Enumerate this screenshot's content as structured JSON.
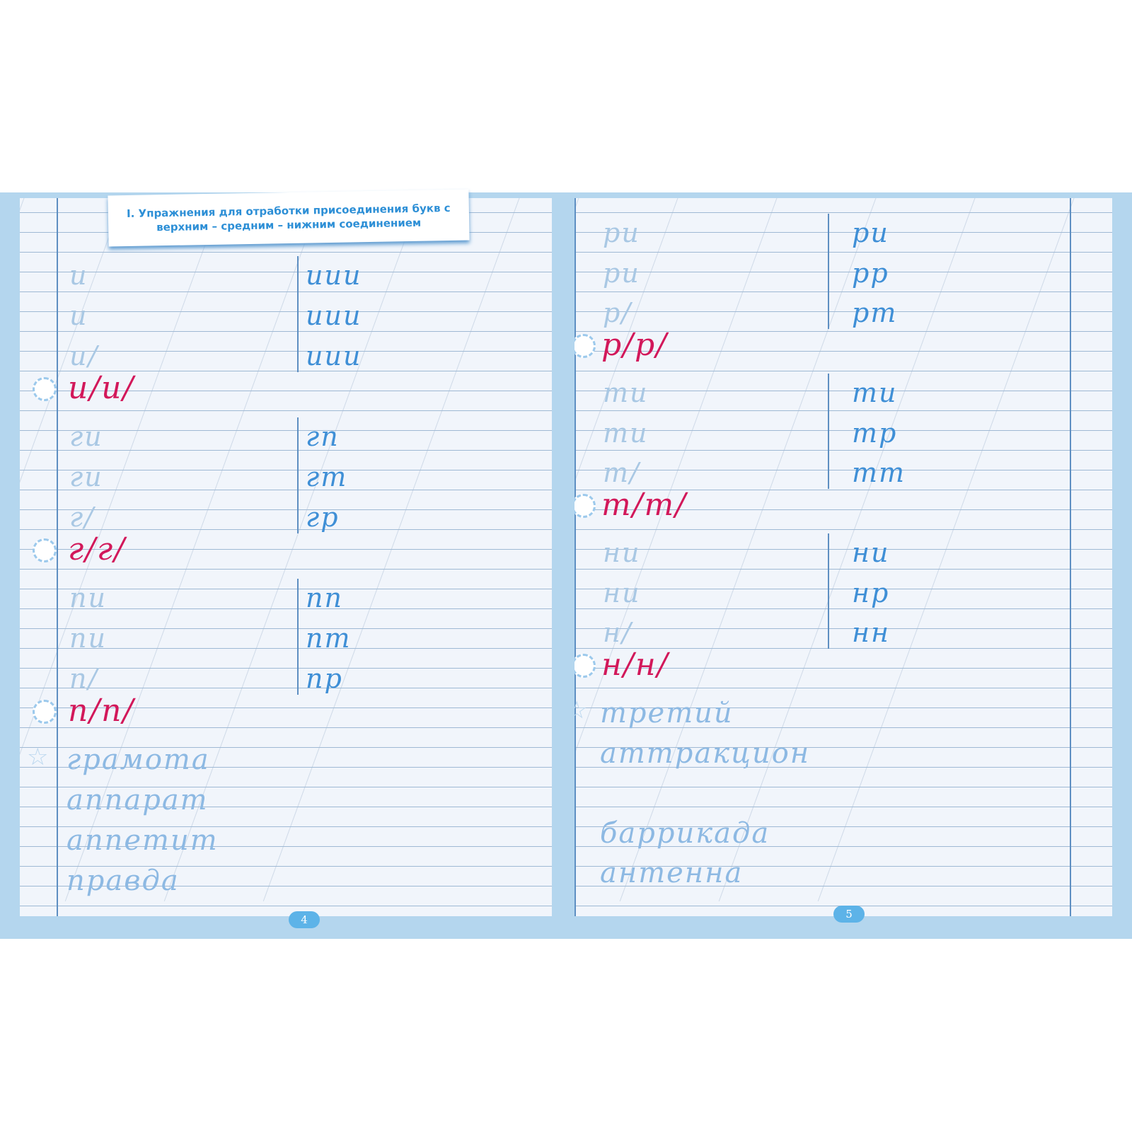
{
  "header": {
    "title_line1": "I. Упражнения для отработки присоединения букв с",
    "title_line2": "верхним – средним – нижним соединением"
  },
  "left_page": {
    "page_number": "4",
    "rows": [
      {
        "left": "и",
        "right": "иии"
      },
      {
        "left": "и",
        "right": "иии"
      },
      {
        "left": "и/",
        "right": "иии"
      },
      {
        "red": "и/и/"
      },
      {
        "left": "ги",
        "right": "гп"
      },
      {
        "left": "ги",
        "right": "гт"
      },
      {
        "left": "г/",
        "right": "гр"
      },
      {
        "red": "г/г/"
      },
      {
        "left": "пи",
        "right": "пп"
      },
      {
        "left": "пи",
        "right": "пт"
      },
      {
        "left": "п/",
        "right": "пр"
      },
      {
        "red": "п/п/"
      }
    ],
    "words": [
      "грамота",
      "аппарат",
      "аппетит",
      "правда"
    ]
  },
  "right_page": {
    "page_number": "5",
    "rows": [
      {
        "left": "ри",
        "right": "ри"
      },
      {
        "left": "ри",
        "right": "рр"
      },
      {
        "left": "р/",
        "right": "рт"
      },
      {
        "red": "р/р/"
      },
      {
        "left": "ти",
        "right": "ти"
      },
      {
        "left": "ти",
        "right": "тр"
      },
      {
        "left": "т/",
        "right": "тт"
      },
      {
        "red": "т/т/"
      },
      {
        "left": "ни",
        "right": "ни"
      },
      {
        "left": "ни",
        "right": "нр"
      },
      {
        "left": "н/",
        "right": "нн"
      },
      {
        "red": "н/н/"
      }
    ],
    "words": [
      "третий",
      "аттракцион",
      "",
      "баррикада",
      "антенна"
    ]
  },
  "colors": {
    "ink_blue": "#3f8fd6",
    "ink_red": "#d2185a",
    "rule": "#9fb9d4",
    "cover": "#b4d6ee"
  }
}
